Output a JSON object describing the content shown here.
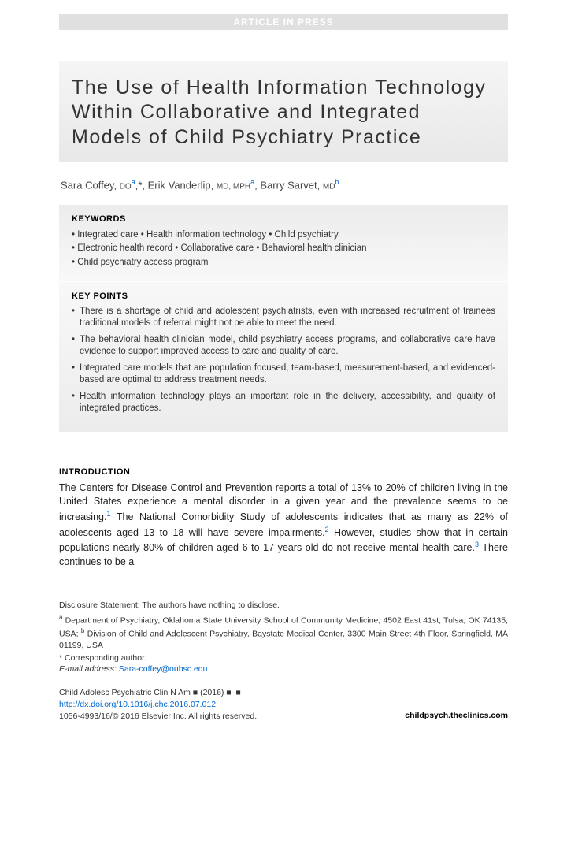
{
  "banner": "ARTICLE IN PRESS",
  "title": "The Use of Health Information Technology Within Collaborative and Integrated Models of Child Psychiatry Practice",
  "authors": {
    "a1_name": "Sara Coffey",
    "a1_deg": "DO",
    "a1_aff": "a",
    "a1_star": ",*",
    "a2_name": "Erik Vanderlip",
    "a2_deg": "MD, MPH",
    "a2_aff": "a",
    "a3_name": "Barry Sarvet",
    "a3_deg": "MD",
    "a3_aff": "b"
  },
  "keywords": {
    "heading": "KEYWORDS",
    "line1": "• Integrated care • Health information technology • Child psychiatry",
    "line2": "• Electronic health record • Collaborative care • Behavioral health clinician",
    "line3": "• Child psychiatry access program"
  },
  "keypoints": {
    "heading": "KEY POINTS",
    "items": [
      "There is a shortage of child and adolescent psychiatrists, even with increased recruitment of trainees traditional models of referral might not be able to meet the need.",
      "The behavioral health clinician model, child psychiatry access programs, and collaborative care have evidence to support improved access to care and quality of care.",
      "Integrated care models that are population focused, team-based, measurement-based, and evidenced-based are optimal to address treatment needs.",
      "Health information technology plays an important role in the delivery, accessibility, and quality of integrated practices."
    ]
  },
  "intro": {
    "heading": "INTRODUCTION",
    "p1_a": "The Centers for Disease Control and Prevention reports a total of 13% to 20% of children living in the United States experience a mental disorder in a given year and the prevalence seems to be increasing.",
    "ref1": "1",
    "p1_b": " The National Comorbidity Study of adolescents indicates that as many as 22% of adolescents aged 13 to 18 will have severe impairments.",
    "ref2": "2",
    "p1_c": " However, studies show that in certain populations nearly 80% of children aged 6 to 17 years old do not receive mental health care.",
    "ref3": "3",
    "p1_d": " There continues to be a"
  },
  "footer": {
    "disclosure": "Disclosure Statement: The authors have nothing to disclose.",
    "aff_a_sup": "a",
    "aff_a": " Department of Psychiatry, Oklahoma State University School of Community Medicine, 4502 East 41st, Tulsa, OK 74135, USA; ",
    "aff_b_sup": "b",
    "aff_b": " Division of Child and Adolescent Psychiatry, Baystate Medical Center, 3300 Main Street 4th Floor, Springfield, MA 01199, USA",
    "corr": "* Corresponding author.",
    "email_label": "E-mail address: ",
    "email": "Sara-coffey@ouhsc.edu",
    "journal": "Child Adolesc Psychiatric Clin N Am ",
    "vol": "■ (2016) ■–■",
    "doi": "http://dx.doi.org/10.1016/j.chc.2016.07.012",
    "issn": "1056-4993/16/© 2016 Elsevier Inc. All rights reserved.",
    "site": "childpsych.theclinics.com"
  },
  "colors": {
    "link": "#0066cc",
    "banner_bg": "#e0e0e0",
    "grad_light": "#f8f8f8",
    "grad_dark": "#ececec"
  }
}
